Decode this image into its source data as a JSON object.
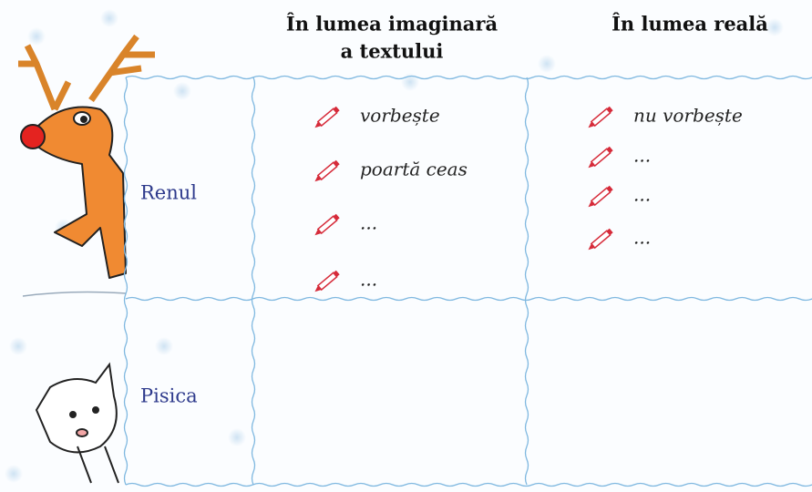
{
  "table": {
    "headers": [
      [
        "În lumea imaginară",
        "a textului"
      ],
      [
        "În lumea reală"
      ]
    ],
    "rows": [
      {
        "label": "Renul",
        "imaginary": [
          "vorbește",
          "poartă ceas",
          "...",
          "..."
        ],
        "real": [
          "nu vorbește",
          "...",
          "...",
          "..."
        ]
      },
      {
        "label": "Pisica",
        "imaginary": [],
        "real": []
      }
    ]
  }
}
